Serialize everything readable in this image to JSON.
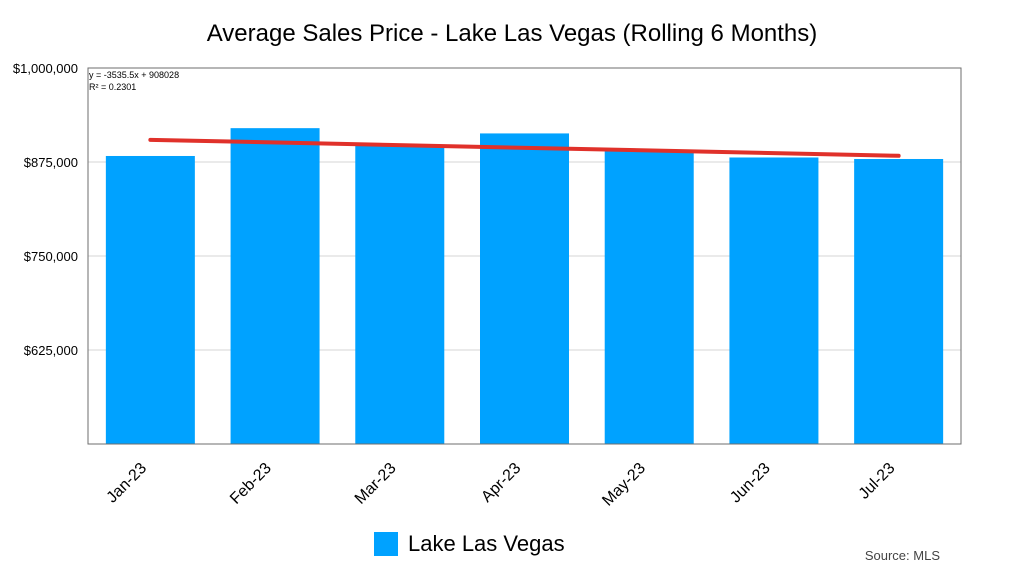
{
  "chart_data": {
    "type": "bar",
    "title": "Average Sales Price - Lake Las Vegas (Rolling 6 Months)",
    "categories": [
      "Jan-23",
      "Feb-23",
      "Mar-23",
      "Apr-23",
      "May-23",
      "Jun-23",
      "Jul-23"
    ],
    "series": [
      {
        "name": "Lake Las Vegas",
        "values": [
          883000,
          920000,
          897000,
          913000,
          890000,
          881000,
          879000
        ],
        "color": "#00a2ff"
      }
    ],
    "trendline": {
      "type": "linear",
      "slope": -3535.5,
      "intercept": 908028,
      "color": "#e0312a",
      "equation_label": "y = -3535.5x + 908028",
      "r2_label": "R² = 0.2301"
    },
    "ylim": [
      500000,
      1000000
    ],
    "yticks": [
      625000,
      750000,
      875000,
      1000000
    ],
    "ytick_labels": [
      "$625,000",
      "$750,000",
      "$875,000",
      "$1,000,000"
    ],
    "xlabel": "",
    "ylabel": "",
    "grid": true,
    "legend": "bottom-center"
  },
  "source_label": "Source: MLS"
}
